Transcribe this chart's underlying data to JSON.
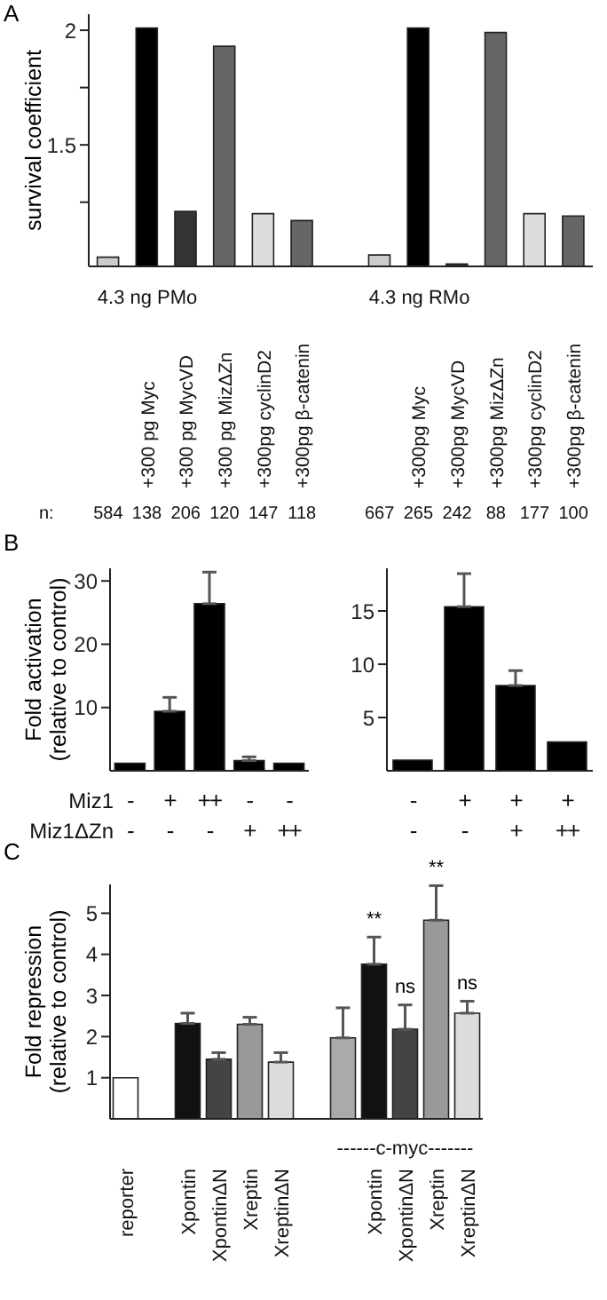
{
  "chart_data": [
    {
      "type": "bar",
      "title": "A",
      "ylabel": "survival coefficient",
      "categories": [
        null,
        "+300 pg Myc",
        "+300 pg MycVD",
        "+300 pg MizΔZn",
        "+300pg cyclinD2",
        "+300pg β-catenin",
        null,
        null,
        "+300pg Myc",
        "+300pg MycVD",
        "+300pg MizΔZn",
        "+300pg cyclinD2",
        "+300pg β-catenin"
      ],
      "values": [
        1.01,
        2.01,
        1.21,
        1.93,
        1.2,
        1.17,
        null,
        1.02,
        2.01,
        0.98,
        1.99,
        1.2,
        1.19
      ],
      "colors": [
        "#cccccc",
        "#000000",
        "#333333",
        "#666666",
        "#dddddd",
        "#666666",
        null,
        "#cccccc",
        "#000000",
        "#333333",
        "#666666",
        "#dddddd",
        "#666666"
      ],
      "ylim": [
        0.97,
        2.07
      ],
      "yticks": [
        {
          "value": 1.25,
          "label": null
        },
        1.5,
        {
          "value": 1.75,
          "label": null
        },
        2
      ],
      "annotations": [
        "4.3 ng PMo",
        "4.3 ng RMo",
        "n:",
        "584",
        "138",
        "206",
        "120",
        "147",
        "118",
        "667",
        "265",
        "242",
        "88",
        "177",
        "100"
      ]
    },
    {
      "type": "bar",
      "title": "B",
      "ylabel": "Fold activation\n(relative to control)",
      "categories": [
        "-\n-",
        "+\n-",
        "++\n-",
        "-\n+",
        "-\n++"
      ],
      "values": [
        1.2,
        9.4,
        26.4,
        1.6,
        1.2
      ],
      "errors": [
        null,
        [
          9.4,
          11.6
        ],
        [
          26.4,
          31.4
        ],
        [
          1.6,
          2.2
        ],
        null
      ],
      "color": "#000000",
      "ylim": [
        0,
        32
      ],
      "yticks": [
        10,
        20,
        30
      ],
      "annotations": [
        "Miz1",
        "Miz1ΔZn"
      ]
    },
    {
      "type": "bar",
      "categories": [
        "-\n-",
        "+\n-",
        "+\n+",
        "+\n++"
      ],
      "values": [
        1.0,
        15.4,
        8.0,
        2.7
      ],
      "errors": [
        null,
        [
          15.4,
          18.5
        ],
        [
          8.0,
          9.4
        ],
        null
      ],
      "color": "#000000",
      "ylim": [
        0,
        19
      ],
      "yticks": [
        5,
        10,
        15
      ]
    },
    {
      "type": "bar",
      "title": "C",
      "ylabel": "Fold repression\n(relative to control)",
      "categories": [
        "reporter",
        null,
        "Xpontin",
        "XpontinΔN",
        "Xreptin",
        "XreptinΔN",
        null,
        null,
        "Xpontin",
        "XpontinΔN",
        "Xreptin",
        "XreptinΔN"
      ],
      "values": [
        1.0,
        null,
        2.32,
        1.45,
        2.3,
        1.38,
        null,
        1.97,
        3.76,
        2.18,
        4.83,
        2.57
      ],
      "errors": [
        null,
        null,
        [
          2.32,
          2.57
        ],
        [
          1.45,
          1.61
        ],
        [
          2.3,
          2.47
        ],
        [
          1.38,
          1.61
        ],
        null,
        [
          1.97,
          2.7
        ],
        [
          3.76,
          4.42
        ],
        [
          2.18,
          2.77
        ],
        [
          4.83,
          5.67
        ],
        [
          2.57,
          2.86
        ]
      ],
      "colors": [
        "#ffffff",
        null,
        "#111111",
        "#444444",
        "#999999",
        "#dddddd",
        null,
        "#aaaaaa",
        "#111111",
        "#444444",
        "#999999",
        "#dddddd"
      ],
      "ylim": [
        0,
        5.7
      ],
      "yticks": [
        1,
        2,
        3,
        4,
        5
      ],
      "annotations": [
        "------c-myc-------",
        "**",
        "ns",
        "**",
        "ns"
      ]
    }
  ]
}
